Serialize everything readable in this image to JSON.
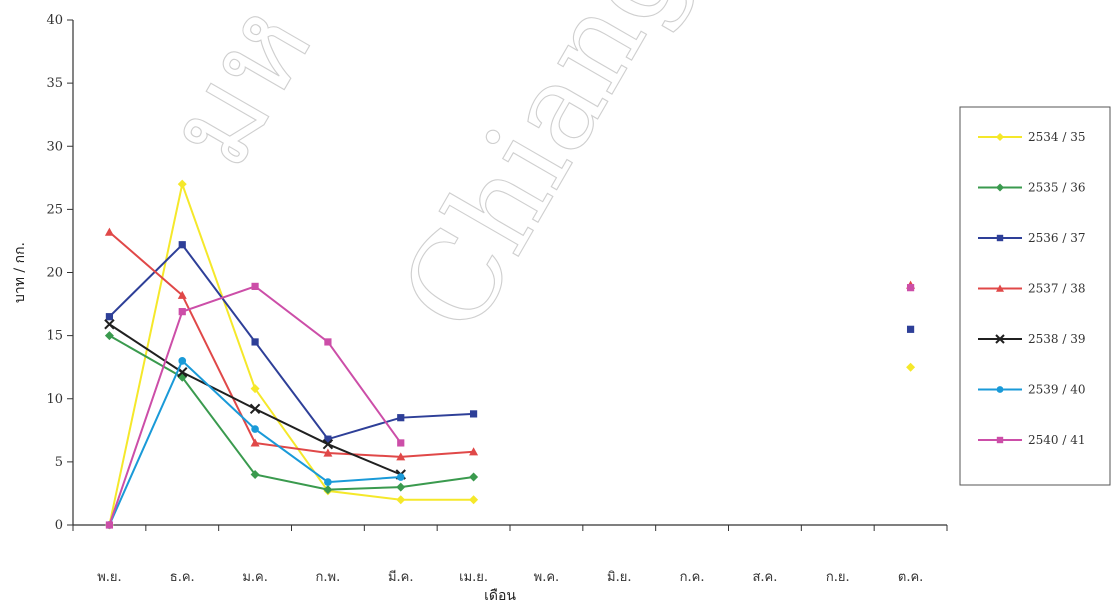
{
  "watermark": [
    "มห",
    "Chiang"
  ],
  "chart_data": {
    "type": "line",
    "xlabel": "เดือน",
    "ylabel": "บาท / กก.",
    "ylim": [
      0,
      40
    ],
    "yticks": [
      0,
      5,
      10,
      15,
      20,
      25,
      30,
      35,
      40
    ],
    "categories": [
      "พ.ย.",
      "ธ.ค.",
      "ม.ค.",
      "ก.พ.",
      "มี.ค.",
      "เม.ย.",
      "พ.ค.",
      "มิ.ย.",
      "ก.ค.",
      "ส.ค.",
      "ก.ย.",
      "ต.ค."
    ],
    "grid": false,
    "legend_position": "right",
    "series": [
      {
        "name": "2534 / 35",
        "color": "#f5e82a",
        "marker": "diamond",
        "values": [
          0,
          27,
          10.8,
          2.7,
          2,
          2,
          null,
          null,
          null,
          null,
          null,
          12.5
        ]
      },
      {
        "name": "2535 / 36",
        "color": "#3a9a4e",
        "marker": "diamond",
        "values": [
          15,
          11.7,
          4,
          2.8,
          3,
          3.8,
          null,
          null,
          null,
          null,
          null,
          null
        ]
      },
      {
        "name": "2536 / 37",
        "color": "#2e3f98",
        "marker": "square",
        "values": [
          16.5,
          22.2,
          14.5,
          6.8,
          8.5,
          8.8,
          null,
          null,
          null,
          null,
          null,
          15.5
        ]
      },
      {
        "name": "2537 / 38",
        "color": "#e04848",
        "marker": "triangle",
        "values": [
          23.2,
          18.2,
          6.5,
          5.7,
          5.4,
          5.8,
          null,
          null,
          null,
          null,
          null,
          19
        ]
      },
      {
        "name": "2538 / 39",
        "color": "#202020",
        "marker": "x",
        "values": [
          15.9,
          12.1,
          9.2,
          6.4,
          4,
          null,
          null,
          null,
          null,
          null,
          null,
          null
        ]
      },
      {
        "name": "2539 / 40",
        "color": "#1a9ad8",
        "marker": "circle",
        "values": [
          0,
          13,
          7.6,
          3.4,
          3.8,
          null,
          null,
          null,
          null,
          null,
          null,
          null
        ]
      },
      {
        "name": "2540 / 41",
        "color": "#cc4ea8",
        "marker": "square",
        "values": [
          0,
          16.9,
          18.9,
          14.5,
          6.5,
          null,
          null,
          null,
          null,
          null,
          null,
          18.8
        ]
      }
    ]
  }
}
